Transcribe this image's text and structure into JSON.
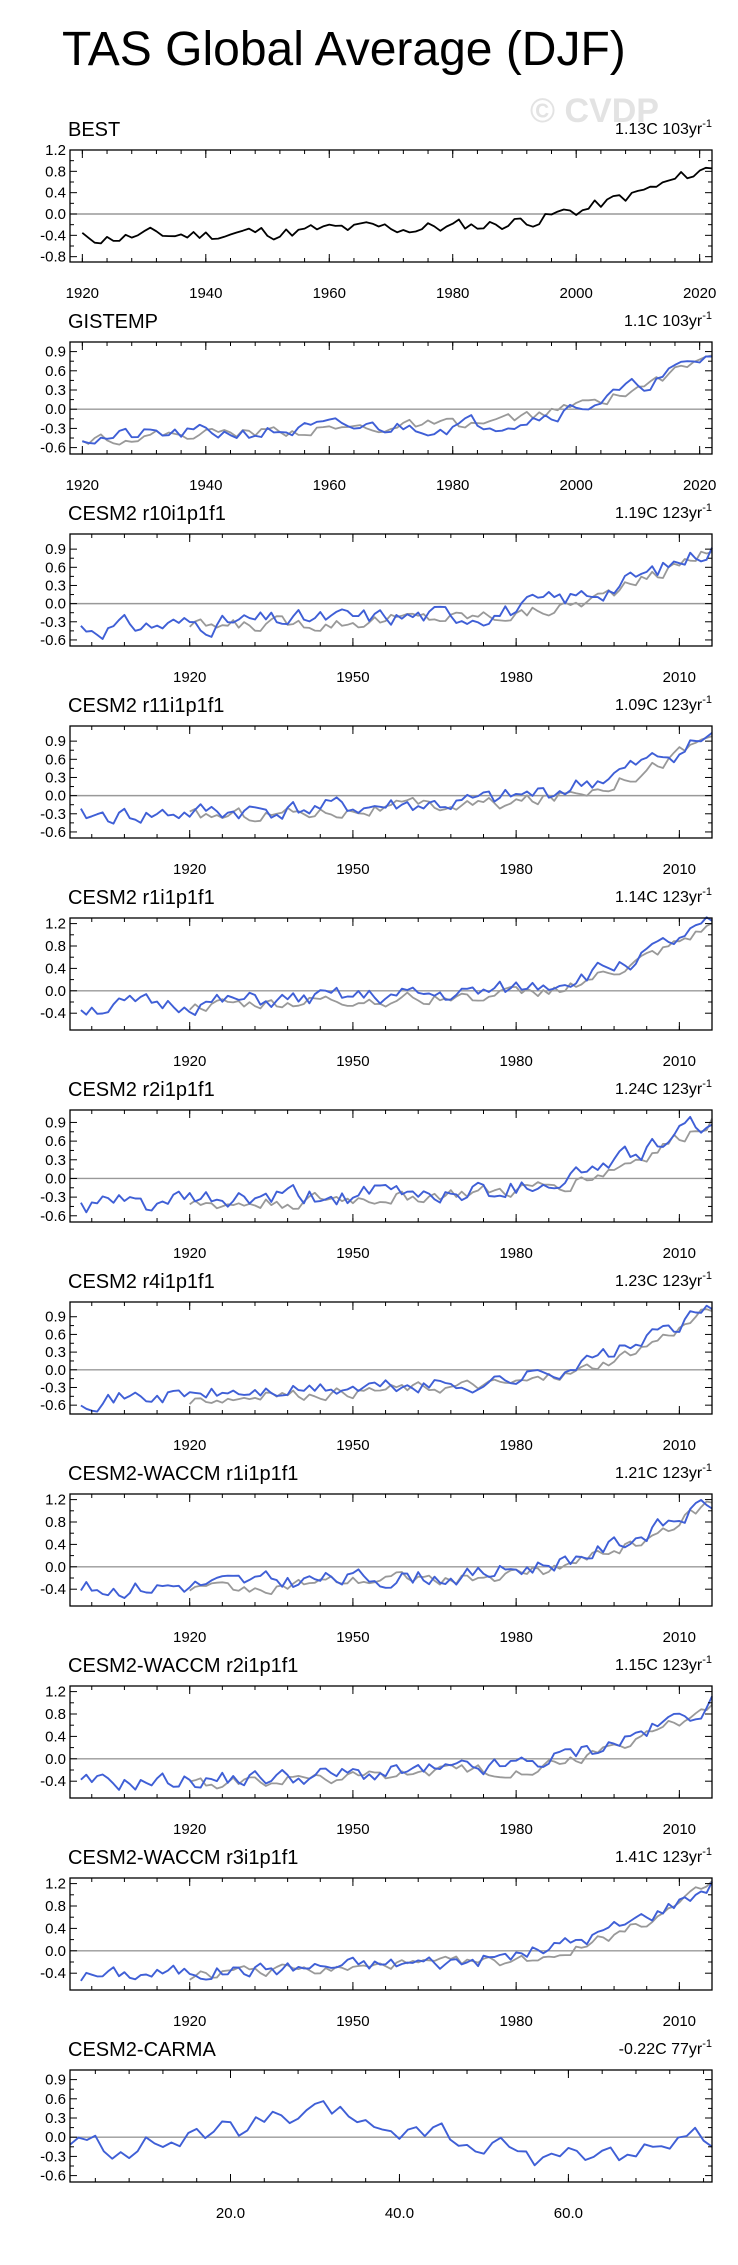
{
  "title": "TAS Global Average (DJF)",
  "watermark": "© CVDP",
  "colors": {
    "obs": "#000000",
    "obs_overlay": "#999999",
    "model": "#3f5fd6",
    "zero_line": "#999999",
    "axis": "#000000"
  },
  "chart_data": [
    {
      "type": "line",
      "name": "BEST",
      "trend": "1.13C 103yr",
      "trend_exp": "-1",
      "xlim": [
        1918,
        2022
      ],
      "ylim": [
        -0.9,
        1.2
      ],
      "yticks": [
        -0.8,
        -0.4,
        0.0,
        0.4,
        0.8,
        1.2
      ],
      "yticklabels": [
        "-0.8",
        "-0.4",
        "0.0",
        "0.4",
        "0.8",
        "1.2"
      ],
      "xticks": [
        1920,
        1940,
        1960,
        1980,
        2000,
        2020
      ],
      "xticklabels": [
        "1920",
        "1940",
        "1960",
        "1980",
        "2000",
        "2020"
      ],
      "series_style": "obs",
      "x_start": 1920,
      "x_end": 2022,
      "seed": 11,
      "start_val": -0.45,
      "end_val": 0.9,
      "noise": 0.12
    },
    {
      "type": "line",
      "name": "GISTEMP",
      "trend": "1.1C 103yr",
      "trend_exp": "-1",
      "xlim": [
        1918,
        2022
      ],
      "ylim": [
        -0.7,
        1.05
      ],
      "yticks": [
        -0.6,
        -0.3,
        0.0,
        0.3,
        0.6,
        0.9
      ],
      "yticklabels": [
        "-0.6",
        "-0.3",
        "0.0",
        "0.3",
        "0.6",
        "0.9"
      ],
      "xticks": [
        1920,
        1940,
        1960,
        1980,
        2000,
        2020
      ],
      "xticklabels": [
        "1920",
        "1940",
        "1960",
        "1980",
        "2000",
        "2020"
      ],
      "series_style": "model_with_obs",
      "x_start": 1920,
      "x_end": 2022,
      "seed": 21,
      "start_val": -0.45,
      "end_val": 0.85,
      "noise": 0.11
    },
    {
      "type": "line",
      "name": "CESM2 r10i1p1f1",
      "trend": "1.19C 123yr",
      "trend_exp": "-1",
      "xlim": [
        1898,
        2016
      ],
      "ylim": [
        -0.7,
        1.15
      ],
      "yticks": [
        -0.6,
        -0.3,
        0.0,
        0.3,
        0.6,
        0.9
      ],
      "yticklabels": [
        "-0.6",
        "-0.3",
        "0.0",
        "0.3",
        "0.6",
        "0.9"
      ],
      "xticks": [
        1920,
        1950,
        1980,
        2010
      ],
      "xticklabels": [
        "1920",
        "1950",
        "1980",
        "2010"
      ],
      "series_style": "model_with_obs",
      "x_start": 1900,
      "x_end": 2016,
      "seed": 31,
      "start_val": -0.4,
      "end_val": 0.95,
      "noise": 0.14
    },
    {
      "type": "line",
      "name": "CESM2 r11i1p1f1",
      "trend": "1.09C 123yr",
      "trend_exp": "-1",
      "xlim": [
        1898,
        2016
      ],
      "ylim": [
        -0.7,
        1.15
      ],
      "yticks": [
        -0.6,
        -0.3,
        0.0,
        0.3,
        0.6,
        0.9
      ],
      "yticklabels": [
        "-0.6",
        "-0.3",
        "0.0",
        "0.3",
        "0.6",
        "0.9"
      ],
      "xticks": [
        1920,
        1950,
        1980,
        2010
      ],
      "xticklabels": [
        "1920",
        "1950",
        "1980",
        "2010"
      ],
      "series_style": "model_with_obs",
      "x_start": 1900,
      "x_end": 2016,
      "seed": 41,
      "start_val": -0.35,
      "end_val": 1.0,
      "noise": 0.14
    },
    {
      "type": "line",
      "name": "CESM2 r1i1p1f1",
      "trend": "1.14C 123yr",
      "trend_exp": "-1",
      "xlim": [
        1898,
        2016
      ],
      "ylim": [
        -0.7,
        1.3
      ],
      "yticks": [
        -0.4,
        0.0,
        0.4,
        0.8,
        1.2
      ],
      "yticklabels": [
        "-0.4",
        "0.0",
        "0.4",
        "0.8",
        "1.2"
      ],
      "xticks": [
        1920,
        1950,
        1980,
        2010
      ],
      "xticklabels": [
        "1920",
        "1950",
        "1980",
        "2010"
      ],
      "series_style": "model_with_obs",
      "x_start": 1900,
      "x_end": 2016,
      "seed": 51,
      "start_val": -0.3,
      "end_val": 1.15,
      "noise": 0.14
    },
    {
      "type": "line",
      "name": "CESM2 r2i1p1f1",
      "trend": "1.24C 123yr",
      "trend_exp": "-1",
      "xlim": [
        1898,
        2016
      ],
      "ylim": [
        -0.7,
        1.1
      ],
      "yticks": [
        -0.6,
        -0.3,
        0.0,
        0.3,
        0.6,
        0.9
      ],
      "yticklabels": [
        "-0.6",
        "-0.3",
        "0.0",
        "0.3",
        "0.6",
        "0.9"
      ],
      "xticks": [
        1920,
        1950,
        1980,
        2010
      ],
      "xticklabels": [
        "1920",
        "1950",
        "1980",
        "2010"
      ],
      "series_style": "model_with_obs",
      "x_start": 1900,
      "x_end": 2016,
      "seed": 61,
      "start_val": -0.45,
      "end_val": 0.95,
      "noise": 0.15
    },
    {
      "type": "line",
      "name": "CESM2 r4i1p1f1",
      "trend": "1.23C 123yr",
      "trend_exp": "-1",
      "xlim": [
        1898,
        2016
      ],
      "ylim": [
        -0.75,
        1.15
      ],
      "yticks": [
        -0.6,
        -0.3,
        0.0,
        0.3,
        0.6,
        0.9
      ],
      "yticklabels": [
        "-0.6",
        "-0.3",
        "0.0",
        "0.3",
        "0.6",
        "0.9"
      ],
      "xticks": [
        1920,
        1950,
        1980,
        2010
      ],
      "xticklabels": [
        "1920",
        "1950",
        "1980",
        "2010"
      ],
      "series_style": "model_with_obs",
      "x_start": 1900,
      "x_end": 2016,
      "seed": 71,
      "start_val": -0.5,
      "end_val": 1.05,
      "noise": 0.12
    },
    {
      "type": "line",
      "name": "CESM2-WACCM r1i1p1f1",
      "trend": "1.21C 123yr",
      "trend_exp": "-1",
      "xlim": [
        1898,
        2016
      ],
      "ylim": [
        -0.7,
        1.3
      ],
      "yticks": [
        -0.4,
        0.0,
        0.4,
        0.8,
        1.2
      ],
      "yticklabels": [
        "-0.4",
        "0.0",
        "0.4",
        "0.8",
        "1.2"
      ],
      "xticks": [
        1920,
        1950,
        1980,
        2010
      ],
      "xticklabels": [
        "1920",
        "1950",
        "1980",
        "2010"
      ],
      "series_style": "model_with_obs",
      "x_start": 1900,
      "x_end": 2016,
      "seed": 81,
      "start_val": -0.4,
      "end_val": 1.15,
      "noise": 0.14
    },
    {
      "type": "line",
      "name": "CESM2-WACCM r2i1p1f1",
      "trend": "1.15C 123yr",
      "trend_exp": "-1",
      "xlim": [
        1898,
        2016
      ],
      "ylim": [
        -0.7,
        1.3
      ],
      "yticks": [
        -0.4,
        0.0,
        0.4,
        0.8,
        1.2
      ],
      "yticklabels": [
        "-0.4",
        "0.0",
        "0.4",
        "0.8",
        "1.2"
      ],
      "xticks": [
        1920,
        1950,
        1980,
        2010
      ],
      "xticklabels": [
        "1920",
        "1950",
        "1980",
        "2010"
      ],
      "series_style": "model_with_obs",
      "x_start": 1900,
      "x_end": 2016,
      "seed": 91,
      "start_val": -0.45,
      "end_val": 1.0,
      "noise": 0.14
    },
    {
      "type": "line",
      "name": "CESM2-WACCM r3i1p1f1",
      "trend": "1.41C 123yr",
      "trend_exp": "-1",
      "xlim": [
        1898,
        2016
      ],
      "ylim": [
        -0.7,
        1.3
      ],
      "yticks": [
        -0.4,
        0.0,
        0.4,
        0.8,
        1.2
      ],
      "yticklabels": [
        "-0.4",
        "0.0",
        "0.4",
        "0.8",
        "1.2"
      ],
      "xticks": [
        1920,
        1950,
        1980,
        2010
      ],
      "xticklabels": [
        "1920",
        "1950",
        "1980",
        "2010"
      ],
      "series_style": "model_with_obs",
      "x_start": 1900,
      "x_end": 2016,
      "seed": 101,
      "start_val": -0.45,
      "end_val": 1.2,
      "noise": 0.12
    },
    {
      "type": "line",
      "name": "CESM2-CARMA",
      "trend": "-0.22C 77yr",
      "trend_exp": "-1",
      "xlim": [
        1,
        77
      ],
      "ylim": [
        -0.7,
        1.05
      ],
      "yticks": [
        -0.6,
        -0.3,
        0.0,
        0.3,
        0.6,
        0.9
      ],
      "yticklabels": [
        "-0.6",
        "-0.3",
        "0.0",
        "0.3",
        "0.6",
        "0.9"
      ],
      "xticks": [
        20,
        40,
        60
      ],
      "xticklabels": [
        "20.0",
        "40.0",
        "60.0"
      ],
      "series_style": "model_only",
      "x_start": 1,
      "x_end": 77,
      "seed": 111,
      "start_val": 0.1,
      "end_val": -0.1,
      "noise": 0.18
    }
  ]
}
